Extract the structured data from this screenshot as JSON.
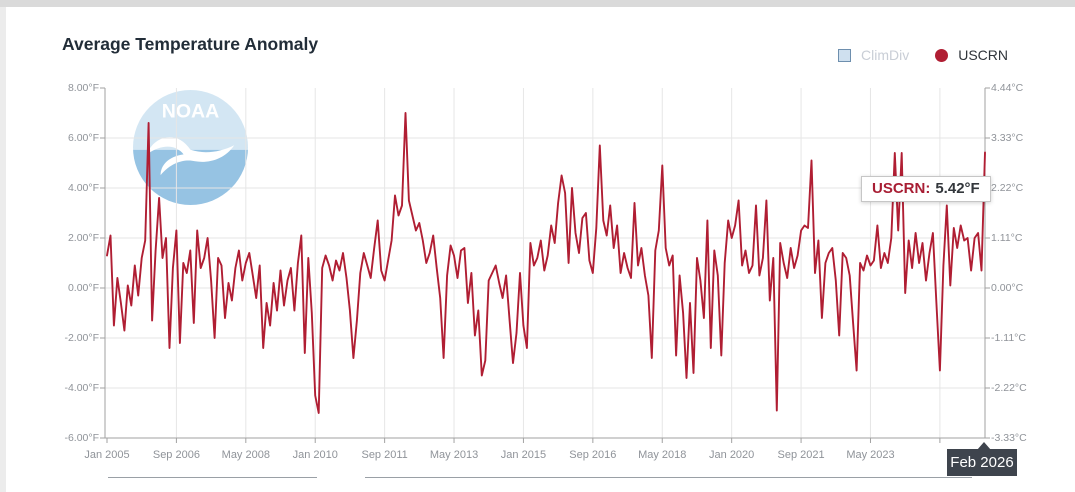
{
  "page": {
    "title": "Average Temperature Anomaly"
  },
  "legend": {
    "items": [
      {
        "label": "ClimDiv",
        "state": "disabled",
        "swatch": "square-icon",
        "fill": "#cfe0ef",
        "border": "#6e8fae"
      },
      {
        "label": "USCRN",
        "state": "active",
        "swatch": "circle-icon",
        "fill": "#b01e33"
      }
    ]
  },
  "watermark": {
    "label": "NOAA"
  },
  "tooltip": {
    "series_label": "USCRN:",
    "value": "5.42°F"
  },
  "crosshair_label": "Feb 2026",
  "colors": {
    "line": "#b01e33",
    "grid": "#e6e6e6",
    "axis": "#a2a2a2",
    "tick_text": "#8f9399",
    "title_text": "#222d38",
    "crosshair_bg": "#3e444d"
  },
  "axes": {
    "left_unit": "°F",
    "right_unit": "°C",
    "left_ticks": [
      {
        "v": 8,
        "label": "8.00°F"
      },
      {
        "v": 6,
        "label": "6.00°F"
      },
      {
        "v": 4,
        "label": "4.00°F"
      },
      {
        "v": 2,
        "label": "2.00°F"
      },
      {
        "v": 0,
        "label": "0.00°F"
      },
      {
        "v": -2,
        "label": "-2.00°F"
      },
      {
        "v": -4,
        "label": "-4.00°F"
      },
      {
        "v": -6,
        "label": "-6.00°F"
      }
    ],
    "right_ticks": [
      {
        "v": 8,
        "label": "4.44°C"
      },
      {
        "v": 6,
        "label": "3.33°C"
      },
      {
        "v": 4,
        "label": "2.22°C"
      },
      {
        "v": 2,
        "label": "1.11°C"
      },
      {
        "v": 0,
        "label": "0.00°C"
      },
      {
        "v": -2,
        "label": "-1.11°C"
      },
      {
        "v": -4,
        "label": "-2.22°C"
      },
      {
        "v": -6,
        "label": "-3.33°C"
      }
    ],
    "x_tick_labels": [
      "Jan 2005",
      "Sep 2006",
      "May 2008",
      "Jan 2010",
      "Sep 2011",
      "May 2013",
      "Jan 2015",
      "Sep 2016",
      "May 2018",
      "Jan 2020",
      "Sep 2021",
      "May 2023"
    ],
    "x_tick_interval_months": 20
  },
  "chart_data": {
    "type": "line",
    "title": "Average Temperature Anomaly",
    "x_start": "Jan 2005",
    "x_end": "Feb 2026",
    "frequency": "monthly",
    "ylim_f": [
      -6,
      8
    ],
    "ylim_c": [
      -3.33,
      4.44
    ],
    "grid": true,
    "legend_position": "top-right",
    "hovered_point": {
      "x": "Feb 2026",
      "series": "USCRN",
      "value_f": 5.42
    },
    "series": [
      {
        "name": "ClimDiv",
        "visible": false,
        "values": []
      },
      {
        "name": "USCRN",
        "visible": true,
        "unit": "°F",
        "values": [
          1.3,
          2.1,
          -1.5,
          0.4,
          -0.6,
          -1.7,
          0.1,
          -0.7,
          0.9,
          -0.3,
          1.2,
          1.9,
          6.6,
          -1.3,
          1.5,
          3.6,
          1.2,
          2.0,
          -2.4,
          0.8,
          2.3,
          -2.2,
          1.0,
          0.6,
          1.5,
          -1.4,
          2.3,
          0.8,
          1.2,
          2.0,
          0.3,
          -2.0,
          1.2,
          0.9,
          -1.2,
          0.2,
          -0.5,
          0.8,
          1.5,
          0.3,
          1.0,
          1.4,
          0.5,
          -0.4,
          0.9,
          -2.4,
          -0.6,
          -1.5,
          0.2,
          -0.9,
          0.7,
          -0.7,
          0.3,
          0.8,
          -0.9,
          1.0,
          2.1,
          -2.6,
          1.2,
          -1.0,
          -4.3,
          -5.0,
          0.8,
          1.3,
          0.9,
          0.3,
          1.1,
          0.7,
          1.4,
          0.4,
          -0.9,
          -2.8,
          -1.3,
          0.6,
          1.4,
          0.9,
          0.4,
          1.6,
          2.7,
          0.7,
          0.3,
          1.1,
          1.9,
          3.7,
          2.9,
          3.3,
          7.0,
          3.5,
          2.9,
          2.3,
          2.6,
          1.9,
          1.0,
          1.4,
          2.1,
          0.8,
          -0.4,
          -2.8,
          0.5,
          1.7,
          1.3,
          0.4,
          1.5,
          1.6,
          -0.6,
          0.6,
          -1.9,
          -0.9,
          -3.5,
          -2.9,
          0.3,
          0.6,
          0.9,
          0.2,
          -0.4,
          0.5,
          -1.3,
          -3.0,
          -1.8,
          0.6,
          -1.5,
          -2.4,
          1.8,
          0.9,
          1.2,
          1.9,
          0.7,
          1.3,
          2.5,
          1.8,
          3.4,
          4.5,
          3.8,
          1.0,
          4.0,
          2.2,
          1.4,
          2.8,
          3.0,
          1.1,
          0.6,
          2.4,
          5.7,
          2.7,
          2.1,
          3.3,
          1.6,
          2.5,
          0.6,
          1.4,
          0.8,
          0.4,
          3.4,
          0.9,
          1.6,
          0.5,
          -0.3,
          -2.8,
          1.5,
          2.3,
          4.9,
          1.6,
          0.9,
          1.3,
          -2.7,
          0.5,
          -1.0,
          -3.6,
          -0.6,
          -3.4,
          1.2,
          0.3,
          -1.2,
          2.7,
          -2.4,
          1.5,
          0.5,
          -2.7,
          1.0,
          2.7,
          2.0,
          2.5,
          3.5,
          0.9,
          1.5,
          0.6,
          0.9,
          3.3,
          0.5,
          1.2,
          3.5,
          -0.5,
          1.2,
          -4.9,
          1.8,
          1.0,
          0.4,
          1.6,
          0.8,
          1.3,
          2.3,
          2.5,
          2.4,
          5.1,
          0.6,
          1.9,
          -1.2,
          1.0,
          1.4,
          1.6,
          0.3,
          -1.9,
          1.4,
          1.2,
          0.5,
          -1.4,
          -3.3,
          1.0,
          0.7,
          1.3,
          0.9,
          1.1,
          2.5,
          0.8,
          1.4,
          1.0,
          2.0,
          5.4,
          2.3,
          5.4,
          -0.2,
          1.9,
          0.8,
          2.2,
          1.0,
          1.8,
          0.3,
          1.4,
          2.2,
          -0.6,
          -3.3,
          0.9,
          3.3,
          0.1,
          2.4,
          1.6,
          2.5,
          1.9,
          2.0,
          0.7,
          2.0,
          2.2,
          0.7,
          5.42
        ]
      }
    ]
  }
}
